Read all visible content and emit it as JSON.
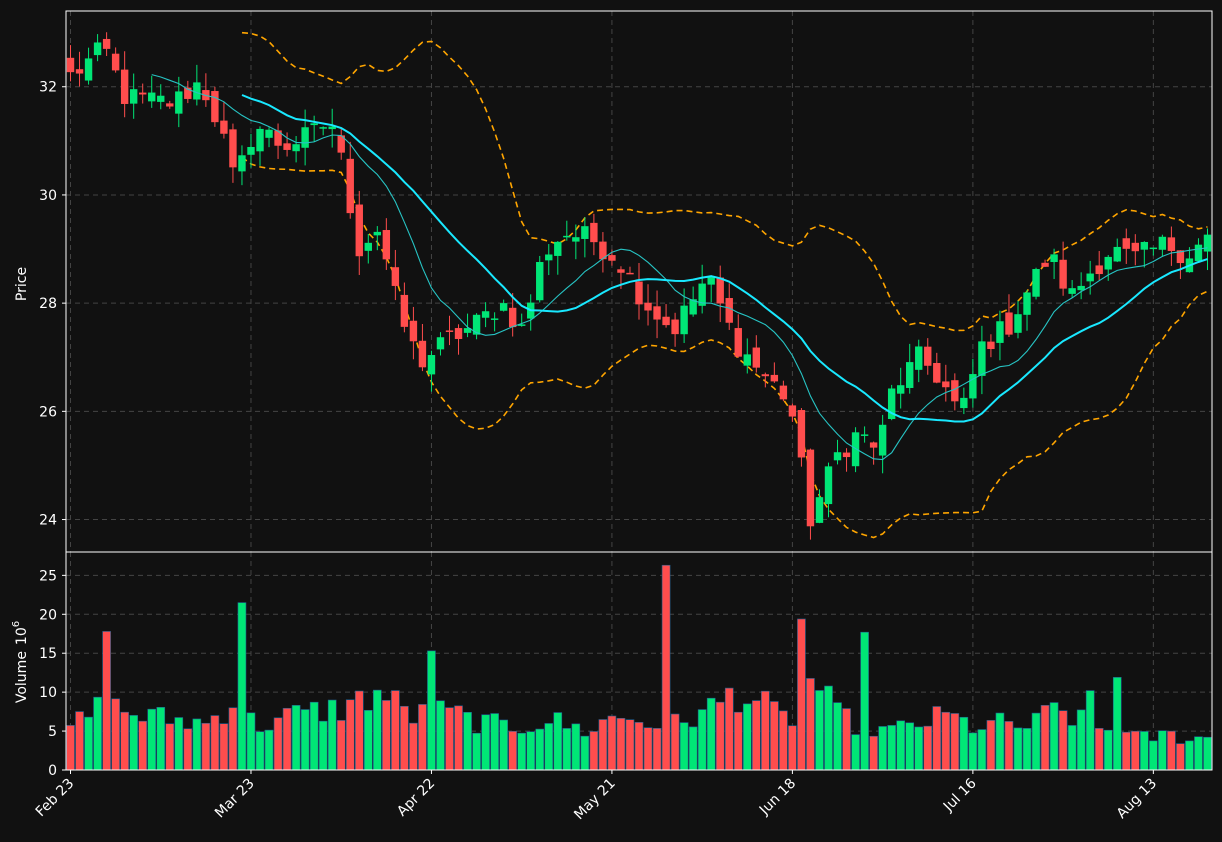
{
  "colors": {
    "background": "#111111",
    "up": "#00e676",
    "down": "#ff4d4d",
    "ma_fast": "#27c4c4",
    "ma_slow": "#19e8ff",
    "bands": "#ffa500",
    "grid": "#444444",
    "frame": "#ffffff"
  },
  "chart_data": [
    {
      "type": "candlestick",
      "ylabel": "Price",
      "ylim": [
        23.4,
        33.4
      ],
      "yticks": [
        24,
        26,
        28,
        30,
        32
      ],
      "grid": true,
      "overlays": [
        "moving average (thin cyan)",
        "moving average (thick cyan)",
        "upper band (dashed orange)",
        "lower band (dashed orange)"
      ]
    },
    {
      "type": "bar",
      "ylabel": "Volume",
      "ylabel_exp": "6",
      "ylim": [
        0,
        28
      ],
      "yticks": [
        0,
        5,
        10,
        15,
        20,
        25
      ],
      "grid": true
    }
  ],
  "xaxis": {
    "tick_labels": [
      "Feb 23",
      "Mar 23",
      "Apr 22",
      "May 21",
      "Jun 18",
      "Jul 16",
      "Aug 13"
    ],
    "tick_index": [
      0,
      20,
      40,
      60,
      80,
      100,
      120
    ],
    "n_bars": 127
  },
  "close_keypoints": [
    [
      0,
      32.2
    ],
    [
      5,
      32.7
    ],
    [
      8,
      31.8
    ],
    [
      15,
      31.7
    ],
    [
      19,
      32.1
    ],
    [
      22,
      31.2
    ],
    [
      24,
      30.2
    ],
    [
      27,
      31.3
    ],
    [
      31,
      30.9
    ],
    [
      35,
      31.1
    ],
    [
      38,
      31.4
    ],
    [
      40,
      30.4
    ],
    [
      42,
      29.0
    ],
    [
      45,
      29.4
    ],
    [
      48,
      27.8
    ],
    [
      51,
      26.9
    ],
    [
      55,
      27.3
    ],
    [
      59,
      27.6
    ],
    [
      63,
      28.0
    ],
    [
      66,
      27.5
    ],
    [
      69,
      28.9
    ],
    [
      72,
      29.3
    ],
    [
      76,
      29.2
    ],
    [
      80,
      28.8
    ],
    [
      84,
      28.0
    ],
    [
      88,
      27.5
    ],
    [
      93,
      28.5
    ],
    [
      97,
      27.3
    ],
    [
      101,
      26.7
    ],
    [
      105,
      26.2
    ],
    [
      108,
      24.0
    ],
    [
      112,
      25.2
    ],
    [
      115,
      25.6
    ],
    [
      118,
      25.3
    ],
    [
      120,
      26.4
    ],
    [
      124,
      27.0
    ],
    [
      127,
      26.6
    ],
    [
      130,
      25.9
    ],
    [
      133,
      27.2
    ],
    [
      137,
      27.6
    ],
    [
      140,
      28.3
    ],
    [
      143,
      28.9
    ],
    [
      146,
      28.1
    ],
    [
      149,
      28.6
    ],
    [
      152,
      29.0
    ],
    [
      155,
      28.8
    ],
    [
      160,
      29.1
    ],
    [
      163,
      28.9
    ],
    [
      166,
      29.2
    ]
  ],
  "volume_keypoints": [
    [
      0,
      5.5
    ],
    [
      5,
      8.5
    ],
    [
      10,
      7
    ],
    [
      20,
      6
    ],
    [
      24,
      9
    ],
    [
      27,
      5.5
    ],
    [
      32,
      7
    ],
    [
      40,
      8
    ],
    [
      45,
      10
    ],
    [
      50,
      7
    ],
    [
      55,
      7.5
    ],
    [
      60,
      6
    ],
    [
      65,
      5.5
    ],
    [
      70,
      6.5
    ],
    [
      75,
      5
    ],
    [
      80,
      7
    ],
    [
      85,
      6
    ],
    [
      92,
      7
    ],
    [
      97,
      10
    ],
    [
      100,
      9
    ],
    [
      105,
      6
    ],
    [
      108,
      12
    ],
    [
      112,
      7
    ],
    [
      116,
      5.5
    ],
    [
      120,
      5
    ],
    [
      124,
      6
    ],
    [
      128,
      7
    ],
    [
      132,
      5.5
    ],
    [
      136,
      6
    ],
    [
      140,
      5.5
    ],
    [
      144,
      8
    ],
    [
      148,
      6
    ],
    [
      152,
      5
    ],
    [
      156,
      4
    ],
    [
      160,
      4.5
    ],
    [
      166,
      4
    ]
  ],
  "volume_spikes": [
    [
      4,
      17.8
    ],
    [
      19,
      21.5
    ],
    [
      40,
      15.3
    ],
    [
      66,
      26.3
    ],
    [
      81,
      19.4
    ],
    [
      88,
      17.7
    ],
    [
      113,
      10.2
    ],
    [
      116,
      11.9
    ]
  ]
}
